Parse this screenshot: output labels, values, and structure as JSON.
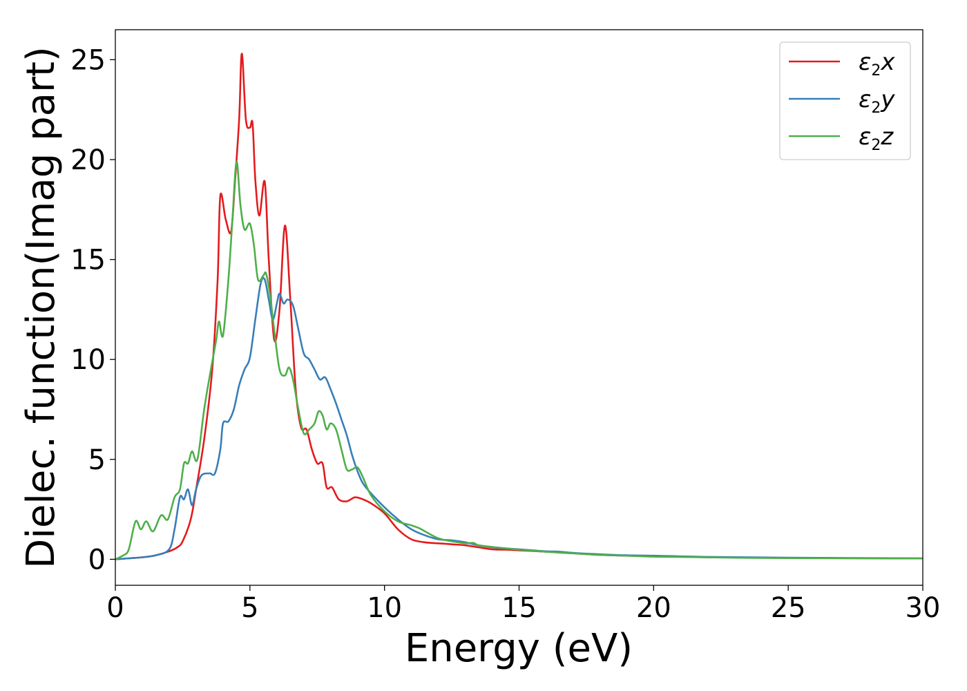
{
  "chart_data": {
    "type": "line",
    "xlabel": "Energy (eV)",
    "ylabel": "Dielec. function(Imag part)",
    "xlim": [
      0,
      30
    ],
    "ylim": [
      -1.3,
      26.5
    ],
    "xticks": [
      0,
      5,
      10,
      15,
      20,
      25,
      30
    ],
    "yticks": [
      0,
      5,
      10,
      15,
      20,
      25
    ],
    "grid": false,
    "legend_position": "top-right",
    "series": [
      {
        "name": "ε2x",
        "base": "ε",
        "sub": "2",
        "suffix": "x",
        "color": "#e41a1c",
        "points": [
          [
            0,
            0
          ],
          [
            0.5,
            0.05
          ],
          [
            1,
            0.1
          ],
          [
            1.5,
            0.2
          ],
          [
            2,
            0.4
          ],
          [
            2.3,
            0.6
          ],
          [
            2.5,
            0.9
          ],
          [
            2.8,
            2
          ],
          [
            3,
            3.5
          ],
          [
            3.3,
            6
          ],
          [
            3.6,
            9.5
          ],
          [
            3.8,
            14
          ],
          [
            3.9,
            18.2
          ],
          [
            4.1,
            17
          ],
          [
            4.3,
            16.4
          ],
          [
            4.45,
            19
          ],
          [
            4.6,
            22
          ],
          [
            4.7,
            25.3
          ],
          [
            4.85,
            22
          ],
          [
            5,
            21.6
          ],
          [
            5.1,
            21.8
          ],
          [
            5.2,
            19
          ],
          [
            5.35,
            17.2
          ],
          [
            5.55,
            18.9
          ],
          [
            5.7,
            15
          ],
          [
            5.9,
            11
          ],
          [
            6.1,
            12.5
          ],
          [
            6.3,
            16.7
          ],
          [
            6.5,
            13
          ],
          [
            6.7,
            8.5
          ],
          [
            6.9,
            6.6
          ],
          [
            7.1,
            6.5
          ],
          [
            7.3,
            5.5
          ],
          [
            7.5,
            4.8
          ],
          [
            7.7,
            4.8
          ],
          [
            7.85,
            3.6
          ],
          [
            8.05,
            3.6
          ],
          [
            8.3,
            3
          ],
          [
            8.6,
            2.9
          ],
          [
            8.9,
            3.1
          ],
          [
            9.2,
            3
          ],
          [
            9.5,
            2.8
          ],
          [
            10,
            2.3
          ],
          [
            10.5,
            1.5
          ],
          [
            11,
            1
          ],
          [
            11.5,
            0.85
          ],
          [
            12,
            0.8
          ],
          [
            12.5,
            0.75
          ],
          [
            13,
            0.7
          ],
          [
            13.5,
            0.6
          ],
          [
            14,
            0.5
          ],
          [
            14.5,
            0.48
          ],
          [
            15,
            0.45
          ],
          [
            16,
            0.38
          ],
          [
            17,
            0.3
          ],
          [
            18,
            0.22
          ],
          [
            19,
            0.18
          ],
          [
            20,
            0.15
          ],
          [
            22,
            0.1
          ],
          [
            25,
            0.07
          ],
          [
            30,
            0.04
          ]
        ]
      },
      {
        "name": "ε2y",
        "base": "ε",
        "sub": "2",
        "suffix": "y",
        "color": "#377eb8",
        "points": [
          [
            0,
            0
          ],
          [
            0.5,
            0.05
          ],
          [
            1,
            0.1
          ],
          [
            1.5,
            0.2
          ],
          [
            2,
            0.5
          ],
          [
            2.2,
            1.5
          ],
          [
            2.4,
            3.1
          ],
          [
            2.55,
            3
          ],
          [
            2.7,
            3.5
          ],
          [
            2.85,
            2.7
          ],
          [
            3,
            3.5
          ],
          [
            3.2,
            4.2
          ],
          [
            3.5,
            4.3
          ],
          [
            3.7,
            4.3
          ],
          [
            3.9,
            5.5
          ],
          [
            4,
            6.8
          ],
          [
            4.2,
            6.9
          ],
          [
            4.4,
            7.5
          ],
          [
            4.6,
            8.7
          ],
          [
            4.8,
            9.5
          ],
          [
            5,
            10.1
          ],
          [
            5.2,
            12
          ],
          [
            5.4,
            13.8
          ],
          [
            5.55,
            14
          ],
          [
            5.7,
            13
          ],
          [
            5.85,
            12
          ],
          [
            6,
            12.8
          ],
          [
            6.1,
            13.3
          ],
          [
            6.25,
            12.8
          ],
          [
            6.4,
            13
          ],
          [
            6.6,
            12.7
          ],
          [
            6.8,
            11.5
          ],
          [
            7,
            10.3
          ],
          [
            7.2,
            10
          ],
          [
            7.4,
            9.5
          ],
          [
            7.6,
            9
          ],
          [
            7.8,
            9.1
          ],
          [
            8,
            8.5
          ],
          [
            8.2,
            7.8
          ],
          [
            8.4,
            7
          ],
          [
            8.6,
            6.2
          ],
          [
            8.8,
            5.2
          ],
          [
            9,
            4.4
          ],
          [
            9.2,
            3.8
          ],
          [
            9.5,
            3.3
          ],
          [
            10,
            2.6
          ],
          [
            10.5,
            2
          ],
          [
            11,
            1.5
          ],
          [
            11.5,
            1.2
          ],
          [
            12,
            1
          ],
          [
            12.5,
            0.95
          ],
          [
            13,
            0.85
          ],
          [
            13.5,
            0.7
          ],
          [
            14,
            0.6
          ],
          [
            14.5,
            0.55
          ],
          [
            15,
            0.5
          ],
          [
            15.5,
            0.45
          ],
          [
            16,
            0.4
          ],
          [
            16.5,
            0.38
          ],
          [
            17,
            0.32
          ],
          [
            18,
            0.25
          ],
          [
            19,
            0.2
          ],
          [
            20,
            0.18
          ],
          [
            22,
            0.12
          ],
          [
            25,
            0.08
          ],
          [
            30,
            0.05
          ]
        ]
      },
      {
        "name": "ε2z",
        "base": "ε",
        "sub": "2",
        "suffix": "z",
        "color": "#4daf4a",
        "points": [
          [
            0,
            0
          ],
          [
            0.3,
            0.2
          ],
          [
            0.5,
            0.5
          ],
          [
            0.75,
            1.9
          ],
          [
            0.95,
            1.5
          ],
          [
            1.15,
            1.9
          ],
          [
            1.4,
            1.4
          ],
          [
            1.7,
            2.2
          ],
          [
            1.95,
            2
          ],
          [
            2.2,
            3.1
          ],
          [
            2.4,
            3.5
          ],
          [
            2.55,
            4.8
          ],
          [
            2.7,
            4.8
          ],
          [
            2.85,
            5.4
          ],
          [
            3.05,
            5
          ],
          [
            3.3,
            7.5
          ],
          [
            3.55,
            9.5
          ],
          [
            3.75,
            11
          ],
          [
            3.85,
            11.9
          ],
          [
            4,
            11.2
          ],
          [
            4.2,
            14
          ],
          [
            4.35,
            17
          ],
          [
            4.5,
            19.9
          ],
          [
            4.65,
            17.7
          ],
          [
            4.8,
            16.5
          ],
          [
            5,
            16.8
          ],
          [
            5.15,
            15.7
          ],
          [
            5.3,
            14
          ],
          [
            5.5,
            14.2
          ],
          [
            5.6,
            14.3
          ],
          [
            5.75,
            13.2
          ],
          [
            5.9,
            11.5
          ],
          [
            6.1,
            9.5
          ],
          [
            6.3,
            9.2
          ],
          [
            6.45,
            9.6
          ],
          [
            6.6,
            9
          ],
          [
            6.8,
            7.5
          ],
          [
            7,
            6.3
          ],
          [
            7.2,
            6.5
          ],
          [
            7.4,
            6.8
          ],
          [
            7.55,
            7.4
          ],
          [
            7.7,
            7.2
          ],
          [
            7.85,
            6.5
          ],
          [
            8,
            6.8
          ],
          [
            8.2,
            6.5
          ],
          [
            8.4,
            5.5
          ],
          [
            8.6,
            4.5
          ],
          [
            8.8,
            4.5
          ],
          [
            9,
            4.6
          ],
          [
            9.2,
            4.1
          ],
          [
            9.5,
            3.2
          ],
          [
            10,
            2.4
          ],
          [
            10.5,
            1.9
          ],
          [
            11,
            1.7
          ],
          [
            11.3,
            1.55
          ],
          [
            11.5,
            1.4
          ],
          [
            12,
            1.05
          ],
          [
            12.5,
            0.9
          ],
          [
            13,
            0.8
          ],
          [
            13.3,
            0.82
          ],
          [
            13.5,
            0.7
          ],
          [
            14,
            0.62
          ],
          [
            14.5,
            0.55
          ],
          [
            15,
            0.48
          ],
          [
            16,
            0.38
          ],
          [
            17,
            0.3
          ],
          [
            18,
            0.22
          ],
          [
            19,
            0.18
          ],
          [
            20,
            0.13
          ],
          [
            21,
            0.12
          ],
          [
            23,
            0.08
          ],
          [
            25,
            0.06
          ],
          [
            30,
            0.04
          ]
        ]
      }
    ]
  }
}
